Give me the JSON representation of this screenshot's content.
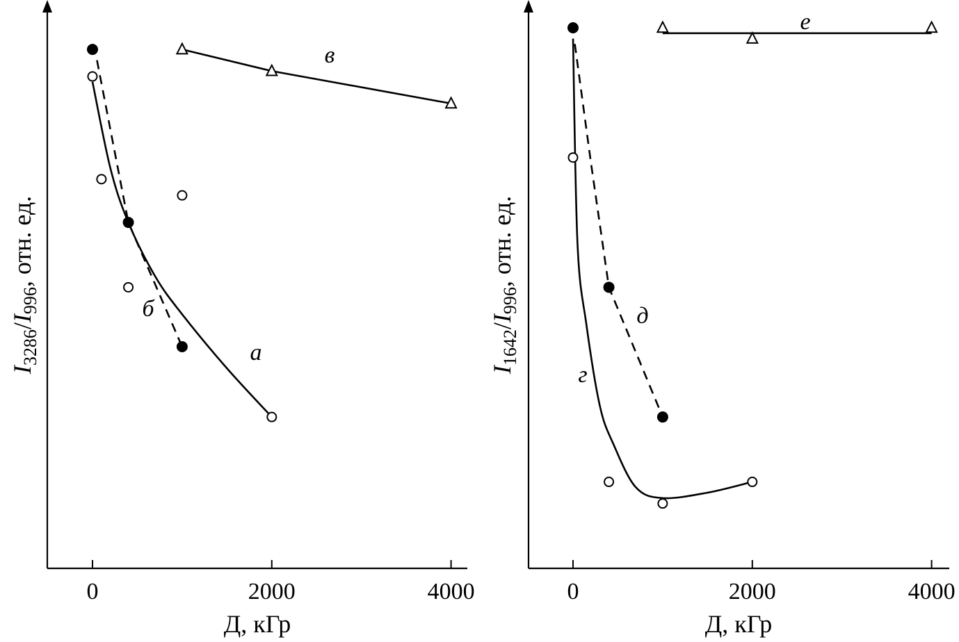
{
  "chart_data": [
    {
      "type": "scatter",
      "title": "",
      "xlabel": "Д, кГр",
      "ylabel_parts": {
        "numerator": "I",
        "num_sub": "3286",
        "slash": "/",
        "denominator": "I",
        "den_sub": "996",
        "unit": ", отн. ед."
      },
      "xticks": [
        0,
        2000,
        4000
      ],
      "xlim": [
        -500,
        4200
      ],
      "ylim": [
        0,
        1.0
      ],
      "series": [
        {
          "name": "а",
          "marker": "open-circle",
          "line": "solid",
          "points": [
            [
              0,
              0.91
            ],
            [
              100,
              0.72
            ],
            [
              400,
              0.52
            ],
            [
              1000,
              0.69
            ],
            [
              2000,
              0.28
            ]
          ],
          "curve": [
            [
              0,
              0.9
            ],
            [
              200,
              0.74
            ],
            [
              400,
              0.64
            ],
            [
              700,
              0.54
            ],
            [
              1000,
              0.47
            ],
            [
              1500,
              0.37
            ],
            [
              2000,
              0.28
            ]
          ]
        },
        {
          "name": "б",
          "marker": "filled-circle",
          "line": "dashed",
          "points": [
            [
              0,
              0.96
            ],
            [
              400,
              0.64
            ],
            [
              1000,
              0.41
            ]
          ],
          "curve": [
            [
              50,
              0.94
            ],
            [
              400,
              0.64
            ],
            [
              1000,
              0.41
            ]
          ]
        },
        {
          "name": "в",
          "marker": "open-triangle",
          "line": "solid",
          "points": [
            [
              1000,
              0.96
            ],
            [
              2000,
              0.92
            ],
            [
              4000,
              0.86
            ]
          ],
          "curve": [
            [
              1000,
              0.96
            ],
            [
              2000,
              0.92
            ],
            [
              4000,
              0.86
            ]
          ]
        }
      ]
    },
    {
      "type": "scatter",
      "title": "",
      "xlabel": "Д, кГр",
      "ylabel_parts": {
        "numerator": "I",
        "num_sub": "1642",
        "slash": "/",
        "denominator": "I",
        "den_sub": "996",
        "unit": ", отн. ед."
      },
      "xticks": [
        0,
        2000,
        4000
      ],
      "xlim": [
        -500,
        4200
      ],
      "ylim": [
        0,
        1.0
      ],
      "series": [
        {
          "name": "г",
          "marker": "open-circle",
          "line": "solid",
          "points": [
            [
              0,
              0.76
            ],
            [
              400,
              0.16
            ],
            [
              1000,
              0.12
            ],
            [
              2000,
              0.16
            ]
          ],
          "curve": [
            [
              0,
              0.98
            ],
            [
              50,
              0.6
            ],
            [
              150,
              0.45
            ],
            [
              300,
              0.3
            ],
            [
              450,
              0.23
            ],
            [
              700,
              0.15
            ],
            [
              1000,
              0.13
            ],
            [
              1500,
              0.14
            ],
            [
              2000,
              0.16
            ]
          ]
        },
        {
          "name": "д",
          "marker": "filled-circle",
          "line": "dashed",
          "points": [
            [
              0,
              1.0
            ],
            [
              400,
              0.52
            ],
            [
              1000,
              0.28
            ]
          ],
          "curve": [
            [
              20,
              0.97
            ],
            [
              200,
              0.75
            ],
            [
              400,
              0.52
            ],
            [
              1000,
              0.28
            ]
          ]
        },
        {
          "name": "е",
          "marker": "open-triangle",
          "line": "solid",
          "points": [
            [
              1000,
              1.0
            ],
            [
              2000,
              0.98
            ],
            [
              4000,
              1.0
            ]
          ],
          "curve": [
            [
              1000,
              0.99
            ],
            [
              4000,
              0.99
            ]
          ]
        }
      ]
    }
  ]
}
